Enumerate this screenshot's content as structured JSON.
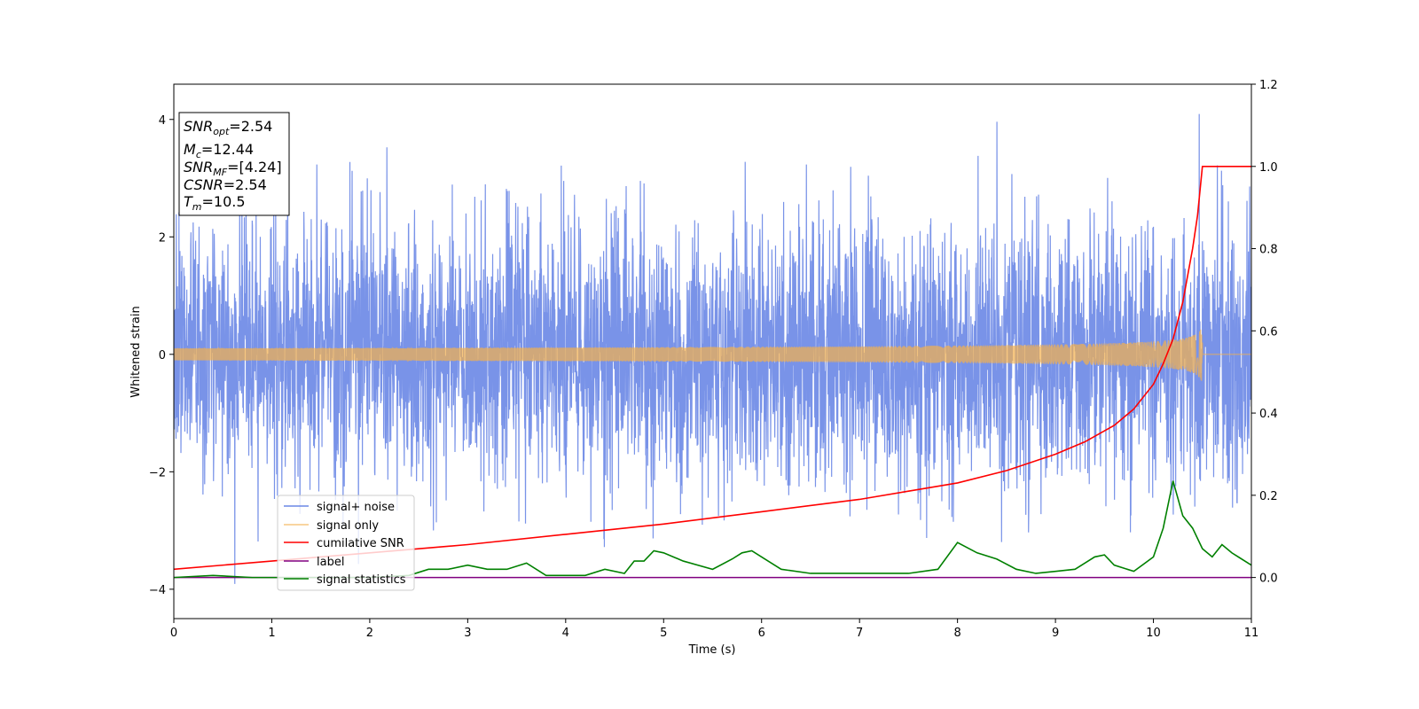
{
  "chart_data": {
    "type": "line",
    "xlabel": "Time (s)",
    "ylabel": "Whitened strain",
    "xlim": [
      0,
      11
    ],
    "ylim_left": [
      -4.5,
      4.6
    ],
    "ylim_right": [
      -0.1,
      1.2
    ],
    "x_ticks": [
      "0",
      "1",
      "2",
      "3",
      "4",
      "5",
      "6",
      "7",
      "8",
      "9",
      "10",
      "11"
    ],
    "y_ticks_left": [
      "−4",
      "−2",
      "0",
      "2",
      "4"
    ],
    "y_ticks_right": [
      "0.0",
      "0.2",
      "0.4",
      "0.6",
      "0.8",
      "1.0",
      "1.2"
    ],
    "legend_placement": "lower-left",
    "info_box": {
      "snr_opt": "=2.54",
      "mc": "=12.44",
      "snr_mf": "=[4.24]",
      "csnr": "=2.54",
      "tm": "=10.5"
    },
    "series": [
      {
        "name": "signal+ noise",
        "color": "#6a87e6",
        "axis": "left",
        "style": "noise",
        "std": 1.1,
        "range": [
          -4.1,
          4.2
        ]
      },
      {
        "name": "signal only",
        "color": "#f5b04c",
        "axis": "left",
        "style": "chirp",
        "merger_time": 10.5,
        "peak_amplitude": 0.5
      },
      {
        "name": "cumilative SNR",
        "color": "#ff0000",
        "axis": "right",
        "x": [
          0,
          1,
          2,
          3,
          4,
          5,
          6,
          7,
          7.5,
          8,
          8.5,
          9,
          9.3,
          9.6,
          9.8,
          10.0,
          10.1,
          10.2,
          10.3,
          10.4,
          10.45,
          10.5,
          11
        ],
        "y": [
          0.02,
          0.04,
          0.06,
          0.08,
          0.105,
          0.13,
          0.16,
          0.19,
          0.21,
          0.23,
          0.26,
          0.3,
          0.33,
          0.37,
          0.41,
          0.47,
          0.52,
          0.58,
          0.67,
          0.8,
          0.88,
          1.0,
          1.0
        ]
      },
      {
        "name": "label",
        "color": "#800080",
        "axis": "right",
        "x": [
          0,
          11
        ],
        "y": [
          0.0,
          0.0
        ]
      },
      {
        "name": "signal statistics",
        "color": "#008000",
        "axis": "right",
        "x": [
          0,
          0.4,
          0.8,
          1.2,
          1.6,
          2.0,
          2.4,
          2.6,
          2.8,
          3.0,
          3.2,
          3.4,
          3.6,
          3.8,
          4.0,
          4.2,
          4.4,
          4.6,
          4.7,
          4.8,
          4.9,
          5.0,
          5.2,
          5.5,
          5.7,
          5.8,
          5.9,
          6.0,
          6.2,
          6.5,
          7.0,
          7.5,
          7.8,
          8.0,
          8.2,
          8.4,
          8.6,
          8.8,
          9.0,
          9.2,
          9.4,
          9.5,
          9.6,
          9.8,
          10.0,
          10.1,
          10.2,
          10.3,
          10.4,
          10.5,
          10.6,
          10.7,
          10.8,
          11.0
        ],
        "y": [
          0.0,
          0.005,
          0.0,
          0.0,
          0.0,
          0.0,
          0.005,
          0.02,
          0.02,
          0.03,
          0.02,
          0.02,
          0.035,
          0.005,
          0.005,
          0.005,
          0.02,
          0.01,
          0.04,
          0.04,
          0.065,
          0.06,
          0.04,
          0.02,
          0.045,
          0.06,
          0.065,
          0.05,
          0.02,
          0.01,
          0.01,
          0.01,
          0.02,
          0.085,
          0.06,
          0.045,
          0.02,
          0.01,
          0.015,
          0.02,
          0.05,
          0.055,
          0.03,
          0.015,
          0.05,
          0.12,
          0.235,
          0.15,
          0.12,
          0.07,
          0.05,
          0.08,
          0.06,
          0.03
        ]
      }
    ]
  }
}
